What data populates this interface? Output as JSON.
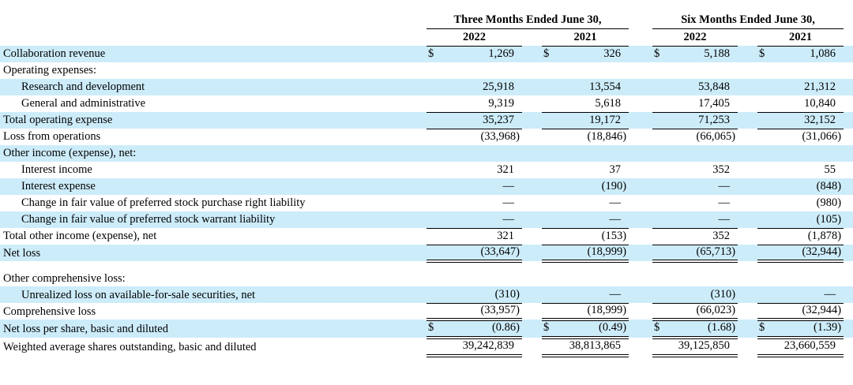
{
  "colors": {
    "row_stripe": "#cdecfa",
    "rule": "#000000",
    "page_background": "#ffffff",
    "text": "#000000"
  },
  "currency_symbol": "$",
  "table": {
    "column_groups": [
      {
        "title": "Three Months Ended June 30,",
        "years": [
          "2022",
          "2021"
        ]
      },
      {
        "title": "Six Months Ended June 30,",
        "years": [
          "2022",
          "2021"
        ]
      }
    ],
    "rows": [
      {
        "label": "Collaboration revenue",
        "indent": 0,
        "shaded": true,
        "dollar": true,
        "rule": "none",
        "values": [
          "1,269",
          "326",
          "5,188",
          "1,086"
        ]
      },
      {
        "label": "Operating expenses:",
        "indent": 0,
        "shaded": false,
        "dollar": false,
        "rule": "none",
        "values": [
          "",
          "",
          "",
          ""
        ]
      },
      {
        "label": "Research and development",
        "indent": 1,
        "shaded": true,
        "dollar": false,
        "rule": "none",
        "values": [
          "25,918",
          "13,554",
          "53,848",
          "21,312"
        ]
      },
      {
        "label": "General and administrative",
        "indent": 1,
        "shaded": false,
        "dollar": false,
        "rule": "single",
        "values": [
          "9,319",
          "5,618",
          "17,405",
          "10,840"
        ]
      },
      {
        "label": "Total operating expense",
        "indent": 0,
        "shaded": true,
        "dollar": false,
        "rule": "single",
        "values": [
          "35,237",
          "19,172",
          "71,253",
          "32,152"
        ]
      },
      {
        "label": "Loss from operations",
        "indent": 0,
        "shaded": false,
        "dollar": false,
        "rule": "none",
        "values": [
          "(33,968)",
          "(18,846)",
          "(66,065)",
          "(31,066)"
        ]
      },
      {
        "label": "Other income (expense), net:",
        "indent": 0,
        "shaded": true,
        "dollar": false,
        "rule": "none",
        "values": [
          "",
          "",
          "",
          ""
        ]
      },
      {
        "label": "Interest income",
        "indent": 1,
        "shaded": false,
        "dollar": false,
        "rule": "none",
        "values": [
          "321",
          "37",
          "352",
          "55"
        ]
      },
      {
        "label": "Interest expense",
        "indent": 1,
        "shaded": true,
        "dollar": false,
        "rule": "none",
        "values": [
          "—",
          "(190)",
          "—",
          "(848)"
        ]
      },
      {
        "label": "Change in fair value of preferred stock purchase right liability",
        "indent": 1,
        "shaded": false,
        "dollar": false,
        "rule": "none",
        "values": [
          "—",
          "—",
          "—",
          "(980)"
        ]
      },
      {
        "label": "Change in fair value of preferred stock warrant liability",
        "indent": 1,
        "shaded": true,
        "dollar": false,
        "rule": "single",
        "values": [
          "—",
          "—",
          "—",
          "(105)"
        ]
      },
      {
        "label": "Total other income (expense), net",
        "indent": 0,
        "shaded": false,
        "dollar": false,
        "rule": "single",
        "values": [
          "321",
          "(153)",
          "352",
          "(1,878)"
        ]
      },
      {
        "label": "Net loss",
        "indent": 0,
        "shaded": true,
        "dollar": false,
        "rule": "double",
        "spacer_after": true,
        "values": [
          "(33,647)",
          "(18,999)",
          "(65,713)",
          "(32,944)"
        ]
      },
      {
        "label": "Other comprehensive loss:",
        "indent": 0,
        "shaded": false,
        "dollar": false,
        "rule": "none",
        "values": [
          "",
          "",
          "",
          ""
        ]
      },
      {
        "label": "Unrealized loss on available-for-sale securities, net",
        "indent": 1,
        "shaded": true,
        "dollar": false,
        "rule": "single",
        "values": [
          "(310)",
          "—",
          "(310)",
          "—"
        ]
      },
      {
        "label": "Comprehensive loss",
        "indent": 0,
        "shaded": false,
        "dollar": false,
        "rule": "double",
        "values": [
          "(33,957)",
          "(18,999)",
          "(66,023)",
          "(32,944)"
        ]
      },
      {
        "label": "Net loss per share, basic and diluted",
        "indent": 0,
        "shaded": true,
        "dollar": true,
        "rule": "double",
        "values": [
          "(0.86)",
          "(0.49)",
          "(1.68)",
          "(1.39)"
        ]
      },
      {
        "label": "Weighted average shares outstanding, basic and diluted",
        "indent": 0,
        "shaded": false,
        "dollar": false,
        "rule": "double",
        "values": [
          "39,242,839",
          "38,813,865",
          "39,125,850",
          "23,660,559"
        ]
      }
    ]
  }
}
